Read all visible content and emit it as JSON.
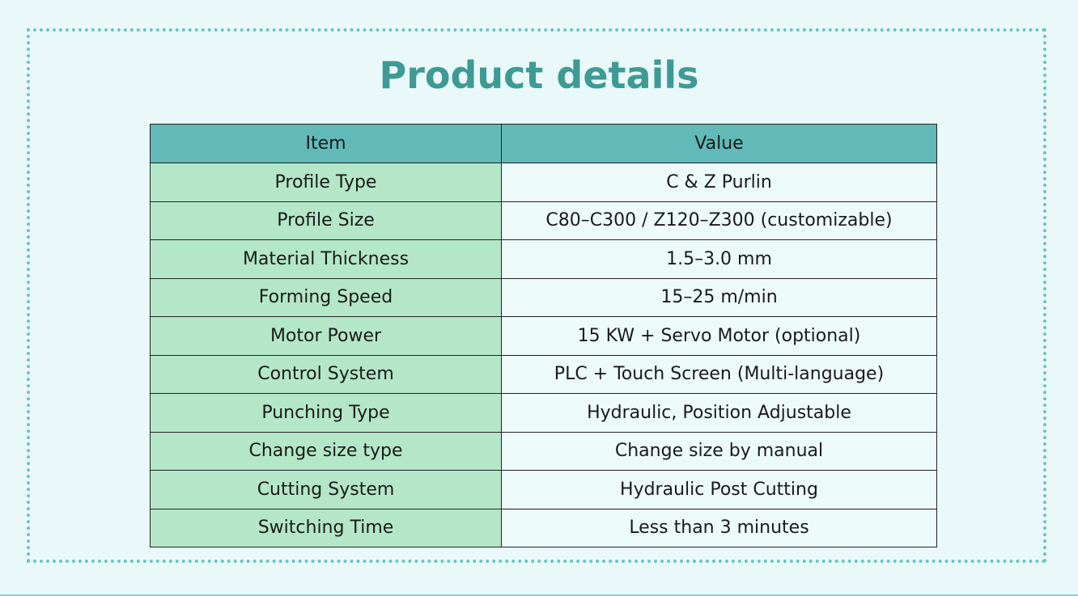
{
  "page": {
    "title": "Product details"
  },
  "table": {
    "headers": [
      "Item",
      "Value"
    ],
    "rows": [
      [
        "Profile Type",
        "C & Z Purlin"
      ],
      [
        "Profile Size",
        "C80–C300 / Z120–Z300 (customizable)"
      ],
      [
        "Material Thickness",
        "1.5–3.0 mm"
      ],
      [
        "Forming Speed",
        "15–25 m/min"
      ],
      [
        "Motor Power",
        "15 KW + Servo Motor (optional)"
      ],
      [
        "Control System",
        "PLC + Touch Screen (Multi-language)"
      ],
      [
        "Punching Type",
        "Hydraulic, Position Adjustable"
      ],
      [
        "Change size type",
        "Change size by manual"
      ],
      [
        "Cutting System",
        "Hydraulic Post Cutting"
      ],
      [
        "Switching Time",
        "Less than 3 minutes"
      ]
    ]
  },
  "colors": {
    "background": "#e9f8f8",
    "title": "#3e9a95",
    "header_bg": "#62bab8",
    "item_bg": "#b4e7c7",
    "value_bg": "#edfafa",
    "frame_dots": "#6cc4c4"
  }
}
